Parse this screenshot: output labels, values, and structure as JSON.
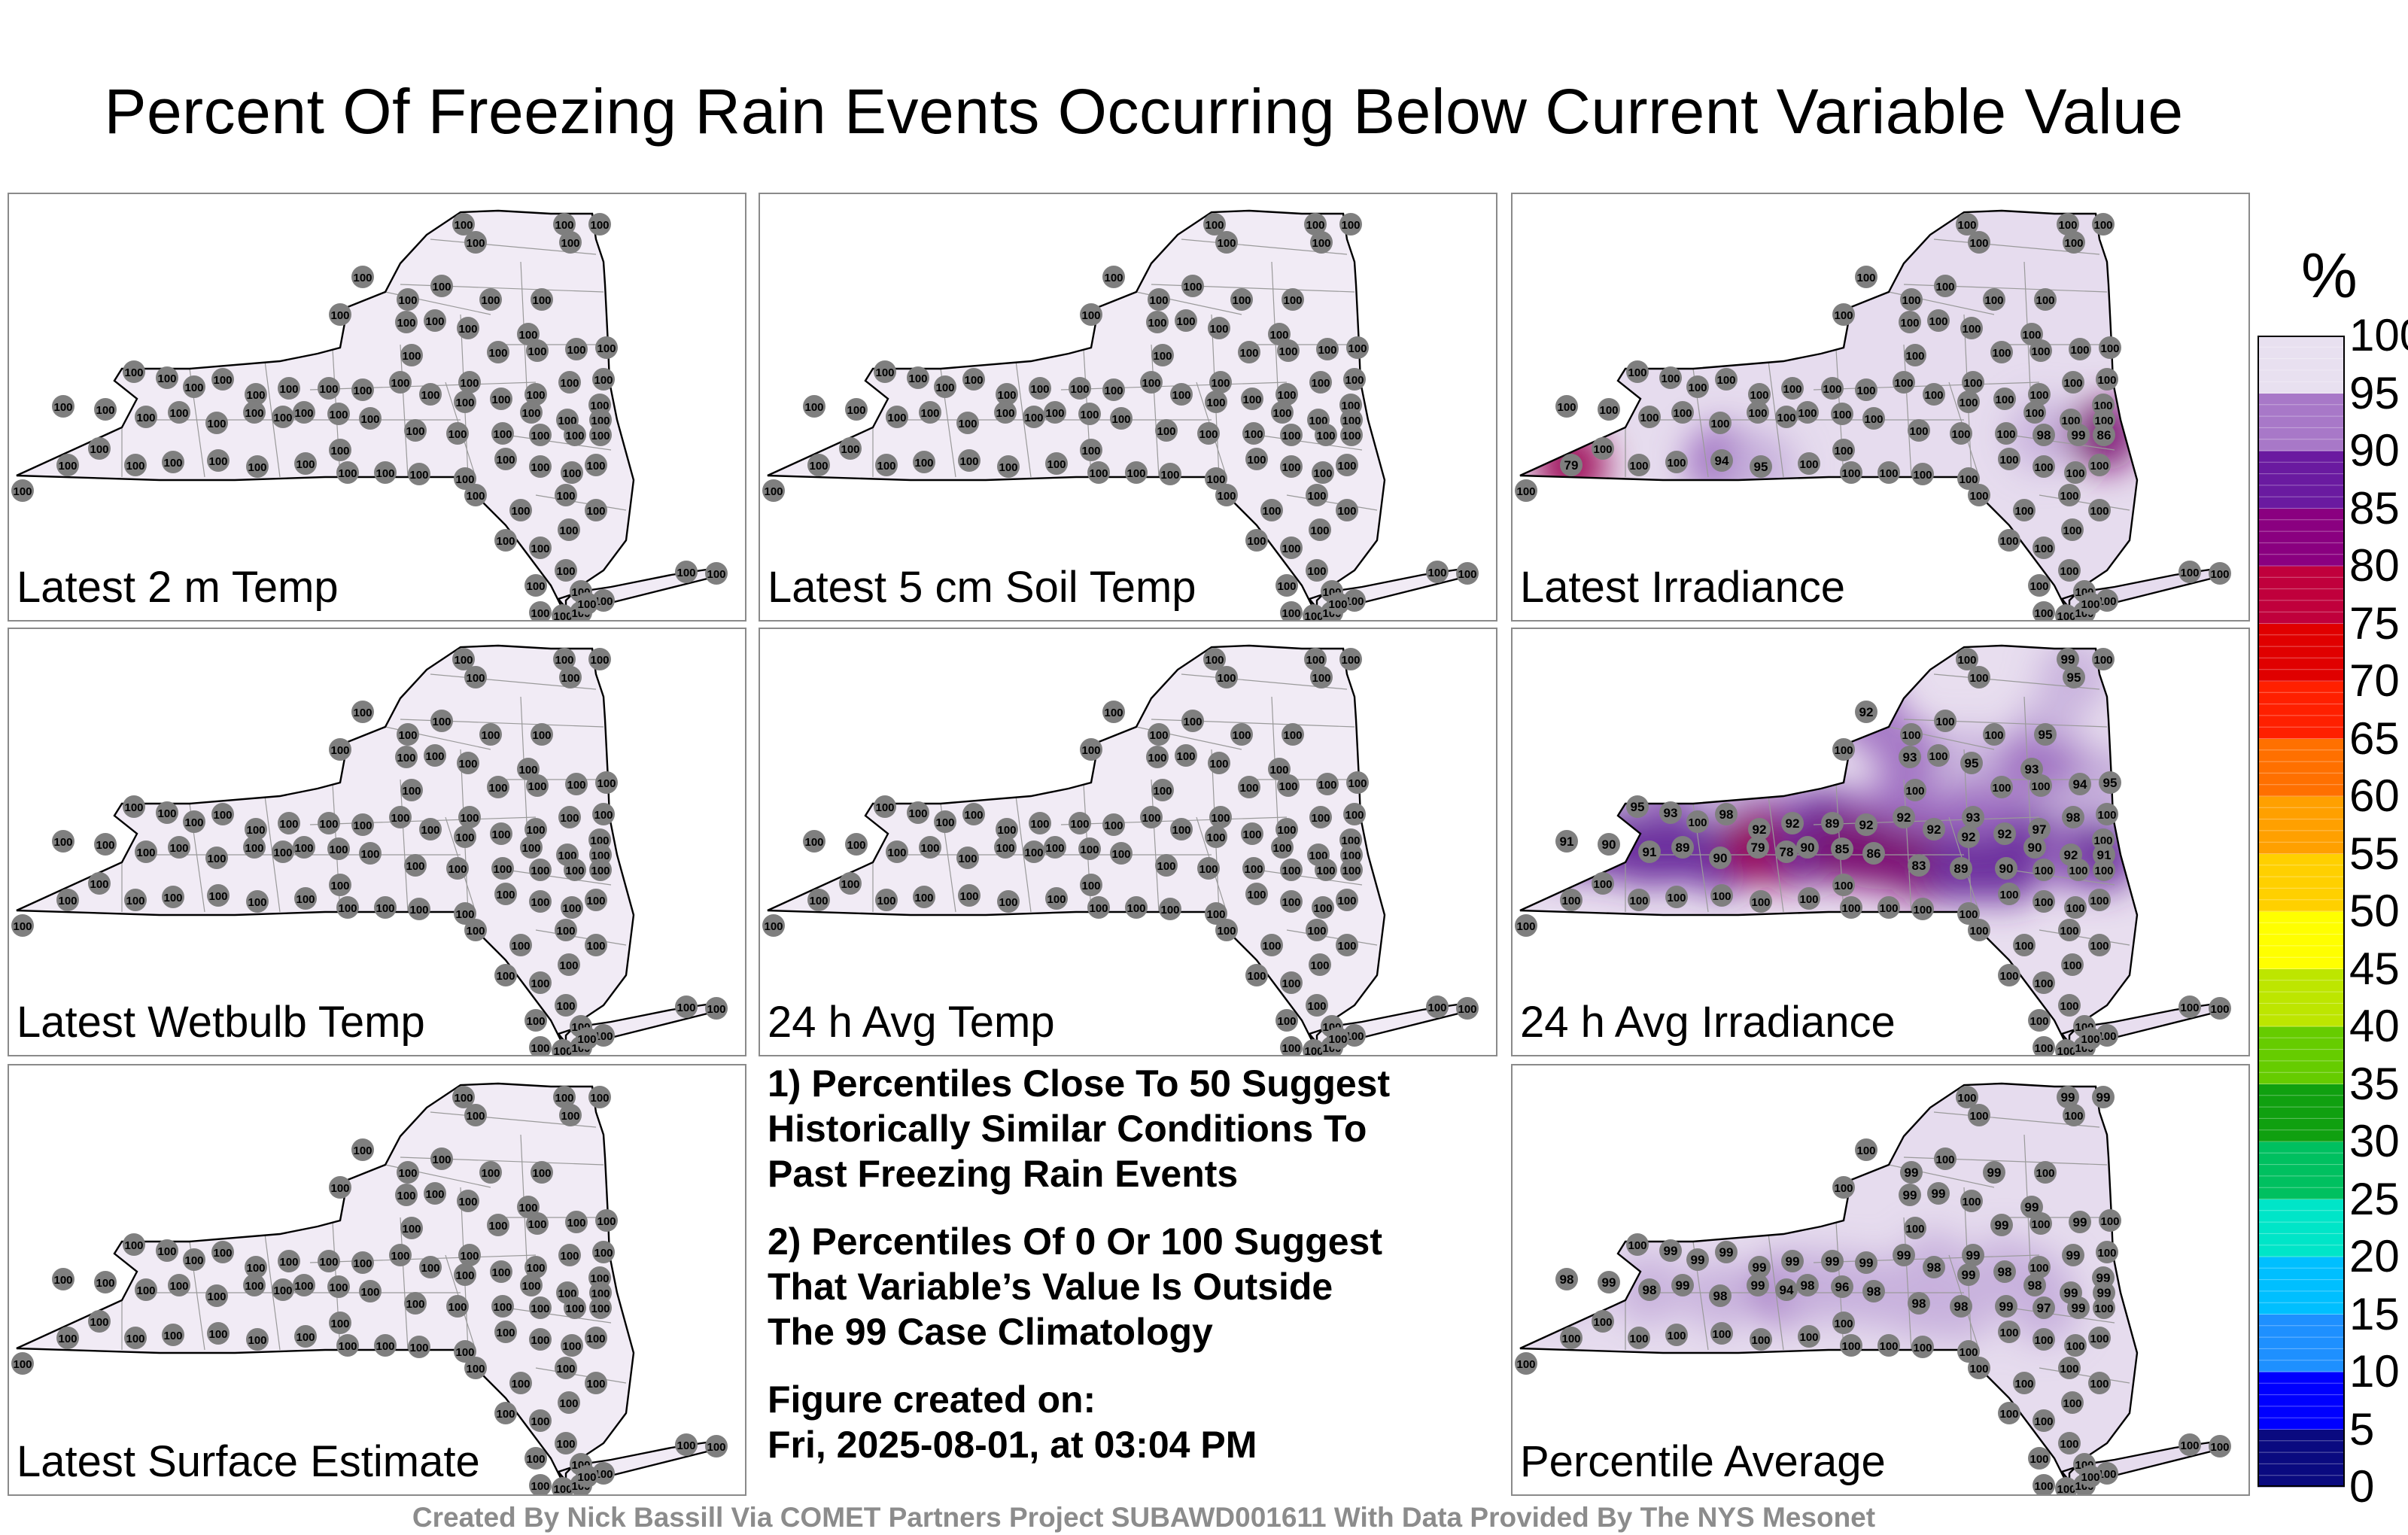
{
  "title": "Percent Of Freezing Rain Events Occurring Below Current Variable Value",
  "panels": [
    {
      "id": "p0",
      "label": "Latest 2 m Temp",
      "mode": "plain",
      "fill": "#f1ebf5"
    },
    {
      "id": "p1",
      "label": "Latest 5 cm Soil Temp",
      "mode": "plain",
      "fill": "#f1ebf5"
    },
    {
      "id": "p2",
      "label": "Latest Irradiance",
      "mode": "irr",
      "fill": "#e6dcee"
    },
    {
      "id": "p3",
      "label": "Latest Wetbulb Temp",
      "mode": "plain",
      "fill": "#f1ebf5"
    },
    {
      "id": "p4",
      "label": "24 h Avg Temp",
      "mode": "plain",
      "fill": "#f1ebf5"
    },
    {
      "id": "p5",
      "label": "24 h Avg Irradiance",
      "mode": "avg",
      "fill": "#e8deef"
    },
    {
      "id": "p6",
      "label": "Latest Surface Estimate",
      "mode": "plain",
      "fill": "#f1ebf5"
    },
    {
      "id": "p8",
      "label": "Percentile Average",
      "mode": "pct",
      "fill": "#e6dcee"
    }
  ],
  "notes": {
    "n1": [
      "1) Percentiles Close To 50 Suggest",
      "Historically Similar Conditions To",
      "Past Freezing Rain Events"
    ],
    "n2": [
      "2) Percentiles Of 0 Or 100 Suggest",
      "That Variable’s Value Is Outside",
      "The 99 Case Climatology"
    ],
    "n3": [
      "Figure created on:",
      "Fri, 2025-08-01, at 03:04 PM"
    ]
  },
  "credit": "Created By Nick Bassill Via COMET Partners Project SUBAWD001611 With Data Provided By The NYS Mesonet",
  "colorbar": {
    "unit": "%",
    "ticks": [
      "0",
      "5",
      "10",
      "15",
      "20",
      "25",
      "30",
      "35",
      "40",
      "45",
      "50",
      "55",
      "60",
      "65",
      "70",
      "75",
      "80",
      "85",
      "90",
      "95",
      "100"
    ],
    "colors": [
      "#000000",
      "#0a0a80",
      "#0000ff",
      "#1e90ff",
      "#00bfff",
      "#00e5c8",
      "#00c060",
      "#10a010",
      "#66cc00",
      "#bde600",
      "#ffff00",
      "#ffd000",
      "#ffa000",
      "#ff7000",
      "#ff2000",
      "#e00000",
      "#c0003c",
      "#8a0080",
      "#6a1aa0",
      "#a878c8",
      "#e8e0f0"
    ]
  },
  "station_values": {
    "default": "100",
    "irr_overrides": {
      "53": "98",
      "54": "99",
      "55": "86",
      "56": "79",
      "57": "100",
      "59": "94",
      "60": "95"
    },
    "avg_overrides": {
      "2": "99",
      "3": "95",
      "5": "92",
      "9": "95",
      "11": "93",
      "13": "95",
      "14": "93",
      "16": "94",
      "17": "95",
      "20": "98",
      "22": "93",
      "23": "97",
      "25": "95",
      "26": "93",
      "28": "98",
      "29": "92",
      "30": "92",
      "31": "89",
      "32": "92",
      "33": "92",
      "34": "92",
      "35": "92",
      "36": "92",
      "37": "90",
      "38": "92",
      "39": "91",
      "40": "91",
      "41": "90",
      "42": "91",
      "43": "89",
      "44": "90",
      "45": "79",
      "46": "78",
      "47": "90",
      "48": "85",
      "49": "86",
      "50": "83",
      "51": "89",
      "52": "90"
    },
    "pct_overrides": {
      "2": "99",
      "4": "99",
      "6": "99",
      "8": "99",
      "11": "99",
      "12": "99",
      "14": "99",
      "16": "99",
      "18": "99",
      "20": "99",
      "22": "99",
      "24": "99",
      "26": "99",
      "27": "99",
      "28": "99",
      "29": "99",
      "30": "99",
      "31": "99",
      "32": "99",
      "33": "99",
      "34": "98",
      "35": "99",
      "36": "98",
      "37": "98",
      "38": "99",
      "39": "99",
      "40": "98",
      "41": "99",
      "42": "98",
      "43": "99",
      "44": "98",
      "45": "99",
      "46": "94",
      "47": "98",
      "48": "96",
      "49": "98",
      "50": "98",
      "51": "98",
      "52": "99",
      "53": "97",
      "54": "99"
    }
  }
}
